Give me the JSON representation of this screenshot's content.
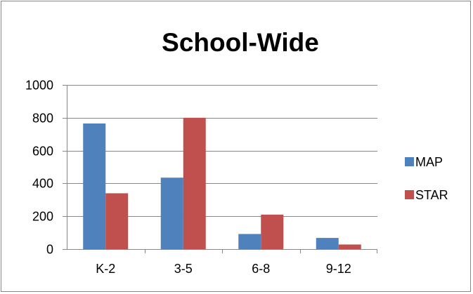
{
  "chart_data": {
    "type": "bar",
    "title": "School-Wide",
    "xlabel": "",
    "ylabel": "",
    "categories": [
      "K-2",
      "3-5",
      "6-8",
      "9-12"
    ],
    "series": [
      {
        "name": "MAP",
        "color": "#4f81bd",
        "values": [
          765,
          435,
          92,
          68
        ]
      },
      {
        "name": "STAR",
        "color": "#c0504d",
        "values": [
          340,
          800,
          210,
          28
        ]
      }
    ],
    "ylim": [
      0,
      1000
    ],
    "yticks": [
      0,
      200,
      400,
      600,
      800,
      1000
    ],
    "grid": true,
    "legend_position": "right"
  }
}
